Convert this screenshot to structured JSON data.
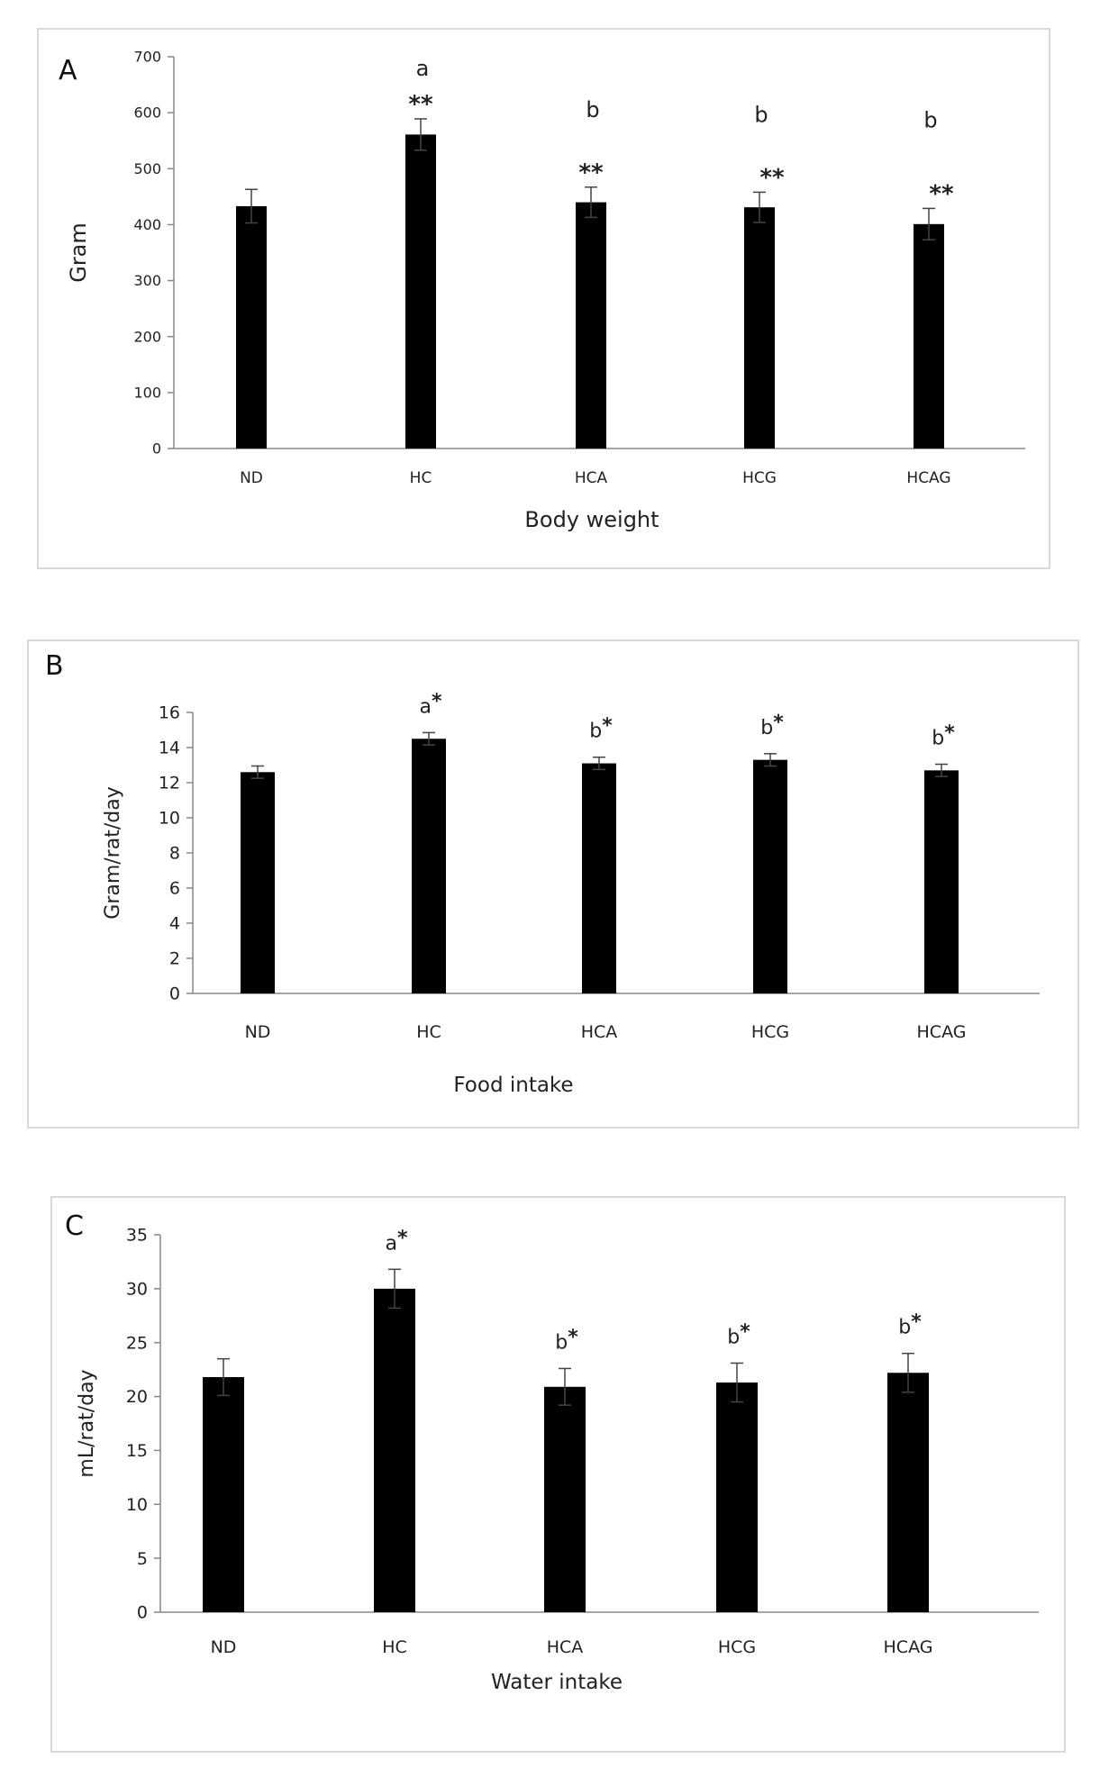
{
  "chart_data": [
    {
      "type": "bar",
      "panel_label": "A",
      "xlabel": "Body weight",
      "ylabel": "Gram",
      "categories": [
        "ND",
        "HC",
        "HCA",
        "HCG",
        "HCAG"
      ],
      "values": [
        433,
        561,
        440,
        431,
        401
      ],
      "errors": [
        30,
        28,
        27,
        27,
        28
      ],
      "annotations": [
        {
          "letter": "",
          "stars": ""
        },
        {
          "letter": "a",
          "stars": "**"
        },
        {
          "letter": "b",
          "stars": "**"
        },
        {
          "letter": "b",
          "stars": "**"
        },
        {
          "letter": "b",
          "stars": "**"
        }
      ],
      "ylim": [
        0,
        700
      ],
      "yticks": [
        0,
        100,
        200,
        300,
        400,
        500,
        600,
        700
      ],
      "color": "#000000"
    },
    {
      "type": "bar",
      "panel_label": "B",
      "xlabel": "Food intake",
      "ylabel": "Gram/rat/day",
      "categories": [
        "ND",
        "HC",
        "HCA",
        "HCG",
        "HCAG"
      ],
      "values": [
        12.6,
        14.5,
        13.1,
        13.3,
        12.7
      ],
      "errors": [
        0.35,
        0.35,
        0.35,
        0.35,
        0.35
      ],
      "annotations": [
        {
          "letter": "",
          "stars": ""
        },
        {
          "letter": "a",
          "stars": "*"
        },
        {
          "letter": "b",
          "stars": "*"
        },
        {
          "letter": "b",
          "stars": "*"
        },
        {
          "letter": "b",
          "stars": "*"
        }
      ],
      "ylim": [
        0,
        16
      ],
      "yticks": [
        0,
        2,
        4,
        6,
        8,
        10,
        12,
        14,
        16
      ],
      "color": "#000000"
    },
    {
      "type": "bar",
      "panel_label": "C",
      "xlabel": "Water intake",
      "ylabel": "mL/rat/day",
      "categories": [
        "ND",
        "HC",
        "HCA",
        "HCG",
        "HCAG"
      ],
      "values": [
        21.8,
        30.0,
        20.9,
        21.3,
        22.2
      ],
      "errors": [
        1.7,
        1.8,
        1.7,
        1.8,
        1.8
      ],
      "annotations": [
        {
          "letter": "",
          "stars": ""
        },
        {
          "letter": "a",
          "stars": "*"
        },
        {
          "letter": "b",
          "stars": "*"
        },
        {
          "letter": "b",
          "stars": "*"
        },
        {
          "letter": "b",
          "stars": "*"
        }
      ],
      "ylim": [
        0,
        35
      ],
      "yticks": [
        0,
        5,
        10,
        15,
        20,
        25,
        30,
        35
      ],
      "color": "#000000"
    }
  ]
}
